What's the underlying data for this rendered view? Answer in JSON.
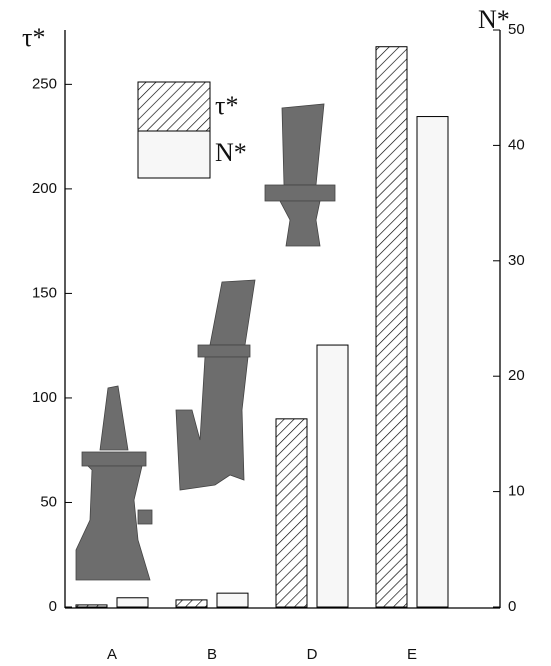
{
  "chart_data": {
    "type": "bar",
    "y_label": "τ*",
    "y2_label": "N*",
    "categories": [
      "A",
      "B",
      "D",
      "E"
    ],
    "series": [
      {
        "name": "τ*",
        "color": "#000000",
        "hatch": true,
        "values": [
          1,
          3.4,
          90,
          268
        ]
      },
      {
        "name": "N*",
        "color": "#f7f7f7",
        "axis": "y2",
        "values": [
          0.8,
          1.2,
          22.7,
          42.5
        ]
      }
    ],
    "ylim": [
      0,
      276
    ],
    "yticks": [
      0,
      50,
      100,
      150,
      200,
      250
    ],
    "y2lim": [
      0,
      50
    ],
    "y2ticks": [
      0,
      10,
      20,
      30,
      40,
      50
    ]
  }
}
